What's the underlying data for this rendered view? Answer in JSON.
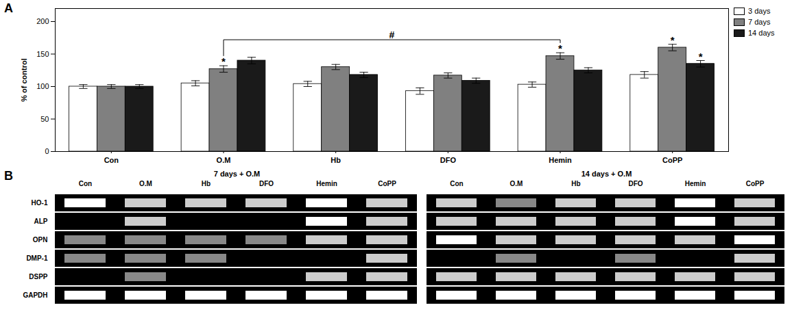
{
  "chart_data": [
    {
      "type": "bar",
      "title": "A",
      "categories": [
        "Con",
        "O.M",
        "Hb",
        "DFO",
        "Hemin",
        "CoPP"
      ],
      "series": [
        {
          "name": "3 days",
          "color": "white",
          "values": [
            100,
            105,
            104,
            93,
            103,
            118
          ],
          "errors": [
            3,
            4,
            4,
            5,
            4,
            5
          ]
        },
        {
          "name": "7 days",
          "color": "#808080",
          "values": [
            100,
            127,
            130,
            117,
            147,
            160
          ],
          "errors": [
            3,
            5,
            4,
            4,
            5,
            5
          ]
        },
        {
          "name": "14 days",
          "color": "#1a1a1a",
          "values": [
            100,
            140,
            118,
            109,
            125,
            135
          ],
          "errors": [
            3,
            5,
            4,
            4,
            4,
            5
          ]
        }
      ],
      "ylabel": "% of control",
      "ylim": [
        0,
        220
      ],
      "yticks": [
        0,
        50,
        100,
        150,
        200
      ],
      "grid": false,
      "legend": "upper right",
      "annotations": [
        {
          "text": "*",
          "category": "O.M",
          "series": "7 days"
        },
        {
          "text": "*",
          "category": "Hemin",
          "series": "7 days"
        },
        {
          "text": "*",
          "category": "CoPP",
          "series": "7 days"
        },
        {
          "text": "*",
          "category": "CoPP",
          "series": "14 days"
        },
        {
          "text": "#",
          "from": "O.M",
          "to": "Hemin",
          "series": "7 days",
          "y": 172
        }
      ]
    },
    {
      "type": "heatmap",
      "title": "B",
      "subtitle": "7 days + O.M",
      "x": [
        "Con",
        "O.M",
        "Hb",
        "DFO",
        "Hemin",
        "CoPP"
      ],
      "y": [
        "HO-1",
        "ALP",
        "OPN",
        "DMP-1",
        "DSPP",
        "GAPDH"
      ],
      "values": [
        [
          3,
          2,
          2,
          2,
          3,
          2
        ],
        [
          0,
          2,
          0,
          0,
          3,
          2
        ],
        [
          1,
          1,
          1,
          1,
          2,
          2
        ],
        [
          1,
          1,
          1,
          0,
          0,
          2
        ],
        [
          0,
          1,
          0,
          0,
          2,
          2
        ],
        [
          3,
          3,
          3,
          3,
          3,
          3
        ]
      ],
      "colors": [
        "black",
        "#888888",
        "#cccccc",
        "#ffffff"
      ]
    },
    {
      "type": "heatmap",
      "subtitle": "14 days + O.M",
      "x": [
        "Con",
        "O.M",
        "Hb",
        "DFO",
        "Hemin",
        "CoPP"
      ],
      "y": [
        "HO-1",
        "ALP",
        "OPN",
        "DMP-1",
        "DSPP",
        "GAPDH"
      ],
      "values": [
        [
          2,
          1,
          2,
          2,
          3,
          2
        ],
        [
          2,
          2,
          2,
          2,
          3,
          2
        ],
        [
          3,
          2,
          2,
          2,
          2,
          3
        ],
        [
          0,
          1,
          0,
          1,
          0,
          2
        ],
        [
          2,
          2,
          2,
          2,
          2,
          2
        ],
        [
          3,
          3,
          3,
          3,
          3,
          3
        ]
      ],
      "colors": [
        "black",
        "#888888",
        "#cccccc",
        "#ffffff"
      ],
      "tick_labels": "x"
    }
  ]
}
